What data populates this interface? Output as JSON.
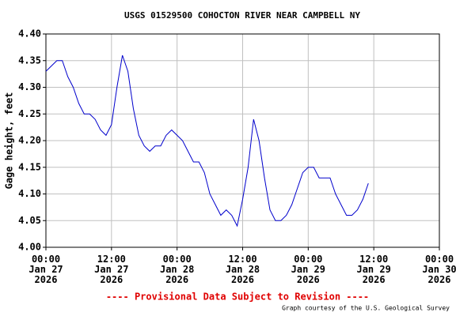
{
  "chart_data": {
    "type": "line",
    "title": "USGS 01529500 COHOCTON RIVER NEAR CAMPBELL NY",
    "y_label": "Gage height, feet",
    "note": "---- Provisional Data Subject to Revision ----",
    "credit": "Graph courtesy of the U.S. Geological Survey",
    "x": [
      0,
      1,
      2,
      3,
      4,
      5,
      6,
      7,
      8,
      9,
      10,
      11,
      12,
      13,
      14,
      15,
      16,
      17,
      18,
      19,
      20,
      21,
      22,
      23,
      24,
      25,
      26,
      27,
      28,
      29,
      30,
      31,
      32,
      33,
      34,
      35,
      36,
      37,
      38,
      39,
      40,
      41,
      42,
      43,
      44,
      45,
      46,
      47,
      48,
      49,
      50,
      51,
      52,
      53,
      54,
      55,
      56,
      57,
      58,
      59
    ],
    "series": [
      {
        "color": "#0000cc",
        "values": [
          4.33,
          4.34,
          4.35,
          4.35,
          4.32,
          4.3,
          4.27,
          4.25,
          4.25,
          4.24,
          4.22,
          4.21,
          4.23,
          4.3,
          4.36,
          4.33,
          4.26,
          4.21,
          4.19,
          4.18,
          4.19,
          4.19,
          4.21,
          4.22,
          4.21,
          4.2,
          4.18,
          4.16,
          4.16,
          4.14,
          4.1,
          4.08,
          4.06,
          4.07,
          4.06,
          4.04,
          4.09,
          4.15,
          4.24,
          4.2,
          4.13,
          4.07,
          4.05,
          4.05,
          4.06,
          4.08,
          4.11,
          4.14,
          4.15,
          4.15,
          4.13,
          4.13,
          4.13,
          4.1,
          4.08,
          4.06,
          4.06,
          4.07,
          4.09,
          4.12
        ]
      }
    ],
    "xlim": [
      0,
      72
    ],
    "xticks": [
      {
        "value": 0,
        "label": "00:00\nJan 27\n2026"
      },
      {
        "value": 12,
        "label": "12:00\nJan 27\n2026"
      },
      {
        "value": 24,
        "label": "00:00\nJan 28\n2026"
      },
      {
        "value": 36,
        "label": "12:00\nJan 28\n2026"
      },
      {
        "value": 48,
        "label": "00:00\nJan 29\n2026"
      },
      {
        "value": 60,
        "label": "12:00\nJan 29\n2026"
      },
      {
        "value": 72,
        "label": "00:00\nJan 30\n2026"
      }
    ],
    "ylim": [
      4.0,
      4.4
    ],
    "yticks": [
      {
        "value": 4.0,
        "label": "4.00"
      },
      {
        "value": 4.05,
        "label": "4.05"
      },
      {
        "value": 4.1,
        "label": "4.10"
      },
      {
        "value": 4.15,
        "label": "4.15"
      },
      {
        "value": 4.2,
        "label": "4.20"
      },
      {
        "value": 4.25,
        "label": "4.25"
      },
      {
        "value": 4.3,
        "label": "4.30"
      },
      {
        "value": 4.35,
        "label": "4.35"
      },
      {
        "value": 4.4,
        "label": "4.40"
      }
    ],
    "grid": true
  }
}
